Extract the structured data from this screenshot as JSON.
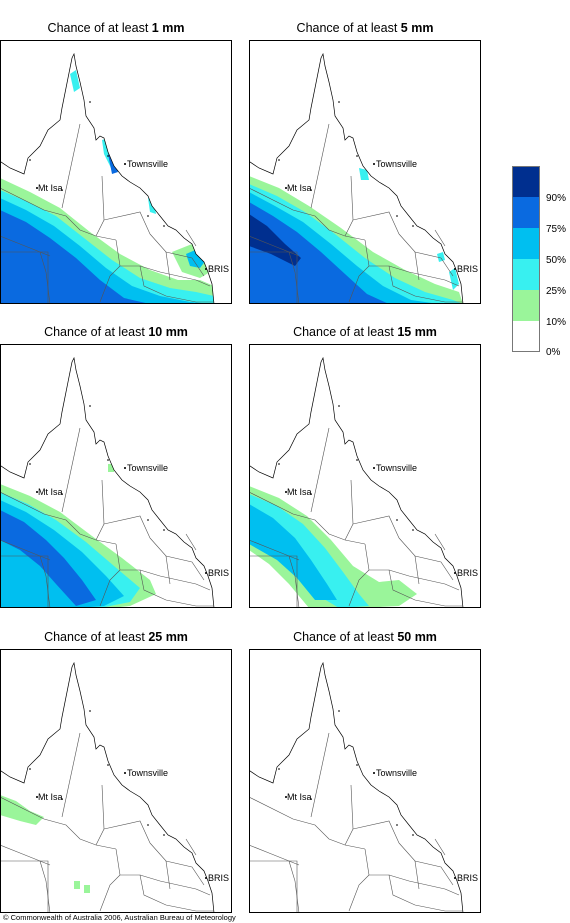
{
  "panels": [
    {
      "prefix": "Chance of at least ",
      "amount": "1 mm",
      "level": 0
    },
    {
      "prefix": "Chance of at least ",
      "amount": "5 mm",
      "level": 1
    },
    {
      "prefix": "Chance of at least ",
      "amount": "10 mm",
      "level": 2
    },
    {
      "prefix": "Chance of at least ",
      "amount": "15 mm",
      "level": 3
    },
    {
      "prefix": "Chance of at least ",
      "amount": "25 mm",
      "level": 4
    },
    {
      "prefix": "Chance of at least ",
      "amount": "50 mm",
      "level": 5
    }
  ],
  "map_labels": {
    "town1": "Townsville",
    "town2": "Mt Isa",
    "town3": "BRIS"
  },
  "legend": {
    "labels": [
      "90%",
      "75%",
      "50%",
      "25%",
      "10%",
      "0%"
    ],
    "colors": [
      "#002f8f",
      "#0a6ae0",
      "#00bff0",
      "#38f0f0",
      "#9af59a",
      "#ffffff"
    ]
  },
  "copyright": "© Commonwealth of Australia 2006, Australian Bureau of Meteorology"
}
